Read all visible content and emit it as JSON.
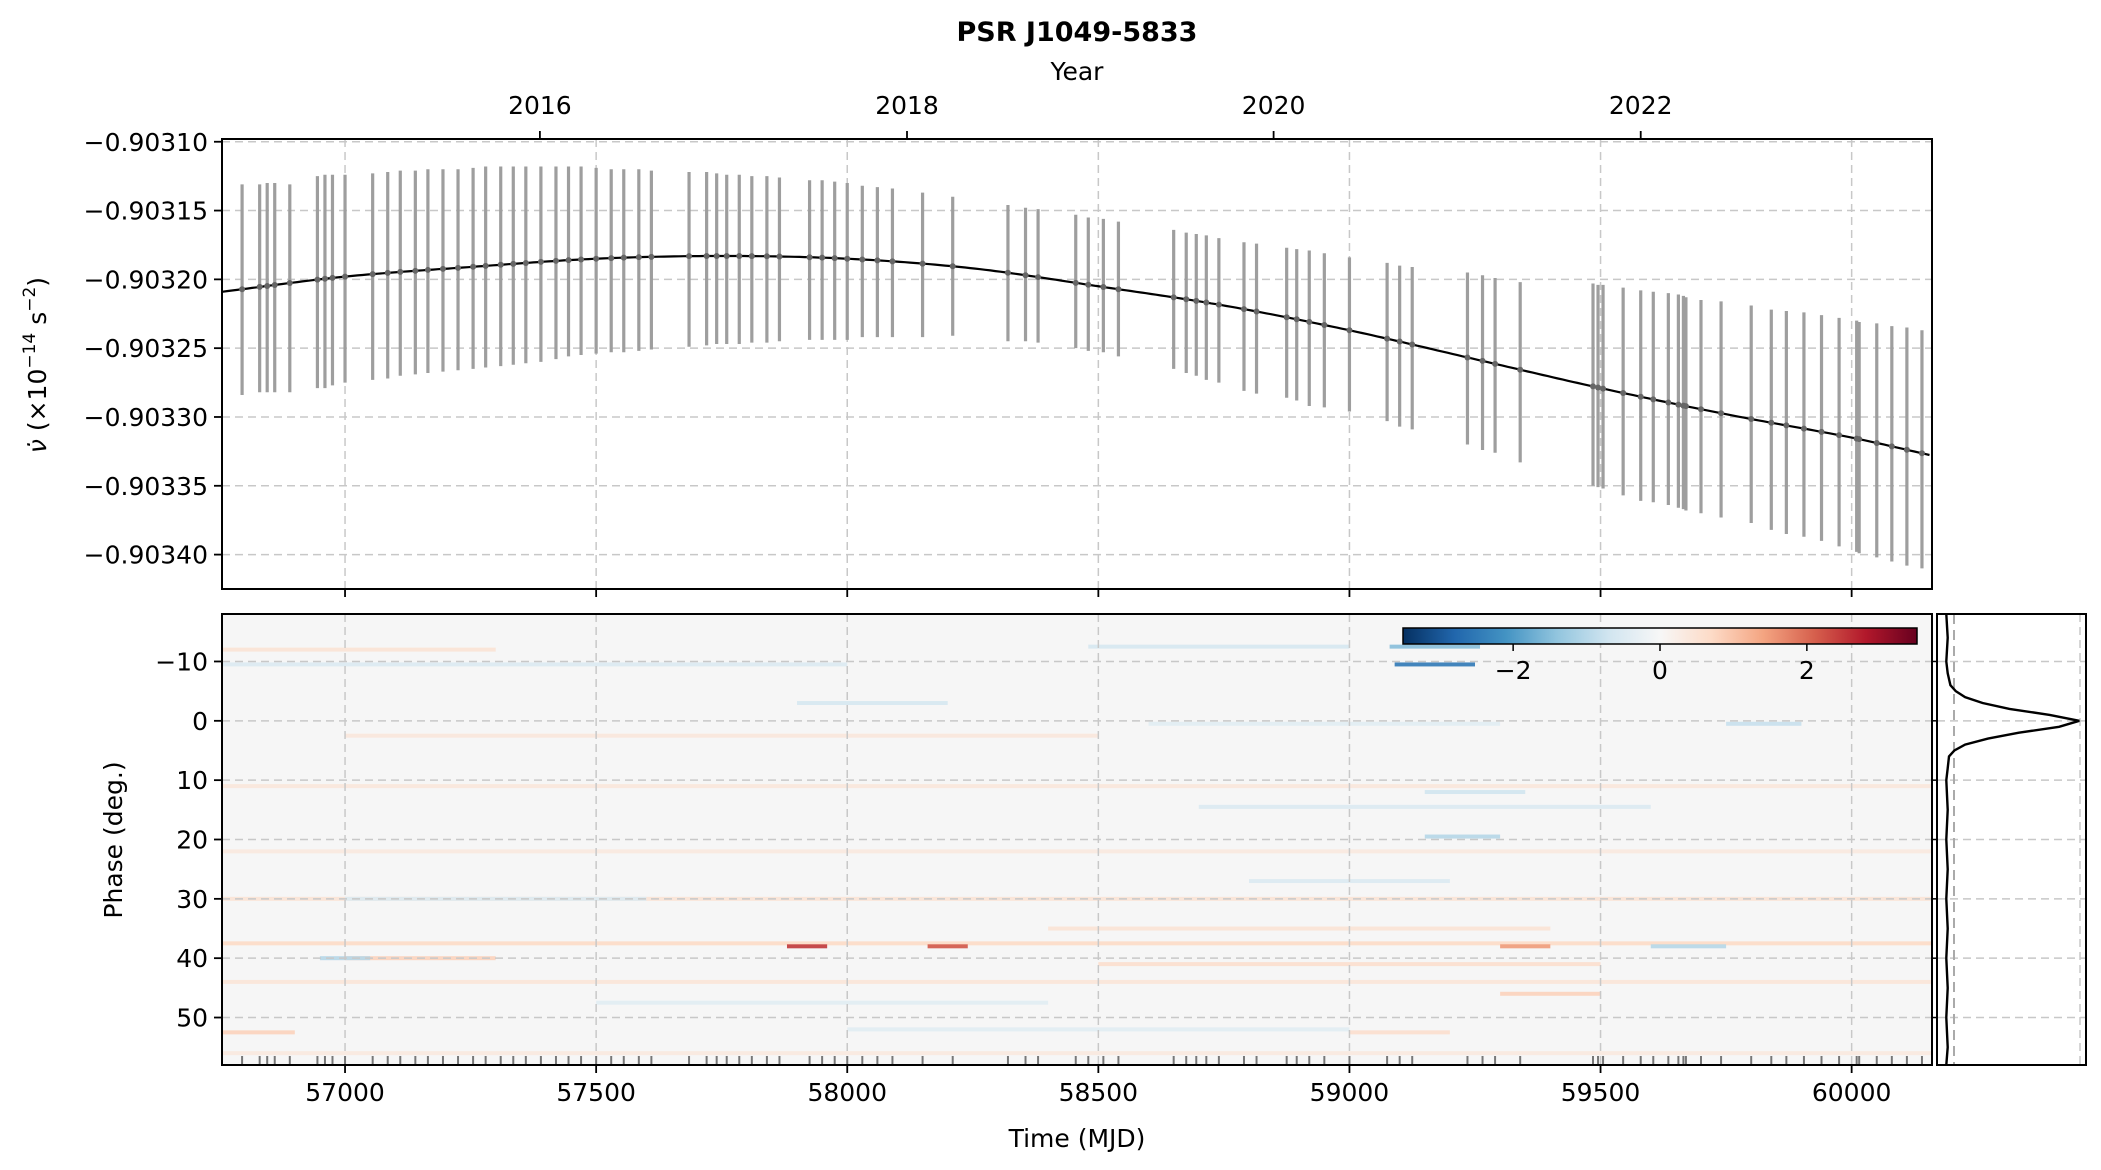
{
  "figure": {
    "title": "PSR J1049-5833"
  },
  "chart_data": [
    {
      "id": "spin-down",
      "type": "line",
      "title": "PSR J1049-5833",
      "xlabel": "",
      "ylabel": "ν̇ (×10⁻¹⁴ s⁻²)",
      "ylabel_parts": {
        "sym": "ν̇",
        "open": " (×10",
        "exp1": "−14",
        "mid": " s",
        "exp2": "−2",
        "close": ")"
      },
      "top_xlabel": "Year",
      "top_ticks": [
        {
          "value": 57388,
          "label": "2016"
        },
        {
          "value": 58119,
          "label": "2018"
        },
        {
          "value": 58849,
          "label": "2020"
        },
        {
          "value": 59580,
          "label": "2022"
        }
      ],
      "xlim": [
        56755,
        60160
      ],
      "ylim": [
        -0.903425,
        -0.903098
      ],
      "yticks": [
        {
          "value": -0.9031,
          "label": "−0.90310"
        },
        {
          "value": -0.90315,
          "label": "−0.90315"
        },
        {
          "value": -0.9032,
          "label": "−0.90320"
        },
        {
          "value": -0.90325,
          "label": "−0.90325"
        },
        {
          "value": -0.9033,
          "label": "−0.90330"
        },
        {
          "value": -0.90335,
          "label": "−0.90335"
        },
        {
          "value": -0.9034,
          "label": "−0.90340"
        }
      ],
      "grid": true,
      "model": {
        "x": [
          56755,
          57000,
          57250,
          57500,
          57750,
          58000,
          58250,
          58500,
          58750,
          59000,
          59250,
          59500,
          59750,
          60000,
          60160
        ],
        "y": [
          -0.903209,
          -0.903198,
          -0.903191,
          -0.903185,
          -0.903183,
          -0.903185,
          -0.903192,
          -0.903205,
          -0.903219,
          -0.903237,
          -0.903258,
          -0.903279,
          -0.903298,
          -0.903315,
          -0.903328
        ]
      },
      "error_bars": {
        "x": [
          56795,
          56830,
          56845,
          56860,
          56890,
          56945,
          56960,
          56975,
          57000,
          57055,
          57085,
          57110,
          57140,
          57165,
          57195,
          57225,
          57255,
          57280,
          57310,
          57335,
          57360,
          57390,
          57420,
          57445,
          57470,
          57500,
          57530,
          57555,
          57585,
          57610,
          57685,
          57720,
          57740,
          57760,
          57785,
          57810,
          57840,
          57865,
          57925,
          57950,
          57975,
          58000,
          58030,
          58060,
          58090,
          58150,
          58210,
          58320,
          58355,
          58380,
          58455,
          58480,
          58510,
          58540,
          58650,
          58675,
          58695,
          58715,
          58740,
          58790,
          58815,
          58875,
          58895,
          58920,
          58950,
          59000,
          59075,
          59100,
          59125,
          59235,
          59265,
          59290,
          59340,
          59485,
          59495,
          59505,
          59545,
          59580,
          59605,
          59635,
          59655,
          59665,
          59670,
          59700,
          59740,
          59800,
          59840,
          59870,
          59905,
          59940,
          59975,
          60010,
          60015,
          60050,
          60080,
          60110,
          60140
        ],
        "lo": [
          -0.903284,
          -0.903282,
          -0.903282,
          -0.903282,
          -0.903282,
          -0.903279,
          -0.903279,
          -0.903277,
          -0.903275,
          -0.903273,
          -0.903272,
          -0.90327,
          -0.903269,
          -0.903268,
          -0.903267,
          -0.903266,
          -0.903265,
          -0.903264,
          -0.903263,
          -0.903262,
          -0.903261,
          -0.90326,
          -0.903258,
          -0.903256,
          -0.903255,
          -0.903254,
          -0.903253,
          -0.903253,
          -0.903252,
          -0.903251,
          -0.903249,
          -0.903248,
          -0.903247,
          -0.903247,
          -0.903247,
          -0.903246,
          -0.903246,
          -0.903245,
          -0.903244,
          -0.903244,
          -0.903244,
          -0.903244,
          -0.903242,
          -0.903242,
          -0.903242,
          -0.903242,
          -0.903241,
          -0.903245,
          -0.903245,
          -0.903246,
          -0.90325,
          -0.903252,
          -0.903253,
          -0.903256,
          -0.903265,
          -0.903268,
          -0.90327,
          -0.903273,
          -0.903275,
          -0.903281,
          -0.903283,
          -0.903286,
          -0.903288,
          -0.903292,
          -0.903293,
          -0.903296,
          -0.903303,
          -0.903307,
          -0.903309,
          -0.90332,
          -0.903324,
          -0.903326,
          -0.903333,
          -0.90335,
          -0.903351,
          -0.903352,
          -0.903357,
          -0.903361,
          -0.903362,
          -0.903364,
          -0.903366,
          -0.903367,
          -0.903368,
          -0.90337,
          -0.903373,
          -0.903377,
          -0.903382,
          -0.903385,
          -0.903387,
          -0.90339,
          -0.903394,
          -0.903398,
          -0.903399,
          -0.903402,
          -0.903405,
          -0.903408,
          -0.90341
        ],
        "hi": [
          -0.903131,
          -0.903131,
          -0.90313,
          -0.90313,
          -0.903131,
          -0.903125,
          -0.903124,
          -0.903124,
          -0.903124,
          -0.903123,
          -0.903122,
          -0.903121,
          -0.903121,
          -0.90312,
          -0.90312,
          -0.90312,
          -0.903119,
          -0.903118,
          -0.903118,
          -0.903118,
          -0.903118,
          -0.903118,
          -0.903118,
          -0.903118,
          -0.903118,
          -0.903119,
          -0.90312,
          -0.90312,
          -0.90312,
          -0.903121,
          -0.903122,
          -0.903122,
          -0.903123,
          -0.903124,
          -0.903124,
          -0.903125,
          -0.903125,
          -0.903126,
          -0.903128,
          -0.903128,
          -0.903129,
          -0.90313,
          -0.903132,
          -0.903133,
          -0.903134,
          -0.903137,
          -0.90314,
          -0.903146,
          -0.903148,
          -0.903149,
          -0.903153,
          -0.903155,
          -0.903156,
          -0.903158,
          -0.903164,
          -0.903166,
          -0.903167,
          -0.903168,
          -0.90317,
          -0.903173,
          -0.903174,
          -0.903177,
          -0.903178,
          -0.903179,
          -0.903181,
          -0.903184,
          -0.903188,
          -0.90319,
          -0.903191,
          -0.903195,
          -0.903197,
          -0.903199,
          -0.903202,
          -0.903203,
          -0.903204,
          -0.903204,
          -0.903206,
          -0.903208,
          -0.903209,
          -0.90321,
          -0.903211,
          -0.903212,
          -0.903213,
          -0.903215,
          -0.903216,
          -0.903219,
          -0.903222,
          -0.903223,
          -0.903224,
          -0.903226,
          -0.903228,
          -0.90323,
          -0.903231,
          -0.903232,
          -0.903234,
          -0.903235,
          -0.903237
        ]
      }
    },
    {
      "id": "residual-heatmap",
      "type": "heatmap",
      "xlabel": "Time (MJD)",
      "ylabel": "Phase (deg.)",
      "xlim": [
        56755,
        60160
      ],
      "ylim": [
        58,
        -18
      ],
      "xticks": [
        {
          "value": 57000,
          "label": "57000"
        },
        {
          "value": 57500,
          "label": "57500"
        },
        {
          "value": 58000,
          "label": "58000"
        },
        {
          "value": 58500,
          "label": "58500"
        },
        {
          "value": 59000,
          "label": "59000"
        },
        {
          "value": 59500,
          "label": "59500"
        },
        {
          "value": 60000,
          "label": "60000"
        }
      ],
      "yticks": [
        {
          "value": -10,
          "label": "−10"
        },
        {
          "value": 0,
          "label": "0"
        },
        {
          "value": 10,
          "label": "10"
        },
        {
          "value": 20,
          "label": "20"
        },
        {
          "value": 30,
          "label": "30"
        },
        {
          "value": 40,
          "label": "40"
        },
        {
          "value": 50,
          "label": "50"
        }
      ],
      "grid": true,
      "colormap": "RdBu_r",
      "colorbar": {
        "range": [
          -3.5,
          3.5
        ],
        "ticks": [
          {
            "value": -2,
            "label": "−2"
          },
          {
            "value": 0,
            "label": "0"
          },
          {
            "value": 2,
            "label": "2"
          }
        ],
        "placement": "upper-right inset"
      },
      "streaks": [
        {
          "x0": 56755,
          "x1": 58000,
          "phase": -9.5,
          "value": -0.5
        },
        {
          "x0": 59090,
          "x1": 59250,
          "phase": -9.5,
          "value": -2.5
        },
        {
          "x0": 59080,
          "x1": 59260,
          "phase": -12.5,
          "value": -1.5
        },
        {
          "x0": 58480,
          "x1": 59000,
          "phase": -12.5,
          "value": -0.6
        },
        {
          "x0": 56755,
          "x1": 57300,
          "phase": -12.0,
          "value": 0.5
        },
        {
          "x0": 57900,
          "x1": 58200,
          "phase": -3.0,
          "value": -0.6
        },
        {
          "x0": 57000,
          "x1": 58500,
          "phase": 2.5,
          "value": 0.4
        },
        {
          "x0": 58600,
          "x1": 59300,
          "phase": 0.5,
          "value": -0.4
        },
        {
          "x0": 59750,
          "x1": 59900,
          "phase": 0.5,
          "value": -0.8
        },
        {
          "x0": 59150,
          "x1": 59350,
          "phase": 12.0,
          "value": -0.7
        },
        {
          "x0": 56755,
          "x1": 60160,
          "phase": 11.0,
          "value": 0.4
        },
        {
          "x0": 58700,
          "x1": 59600,
          "phase": 14.5,
          "value": -0.5
        },
        {
          "x0": 59150,
          "x1": 59300,
          "phase": 19.5,
          "value": -1.0
        },
        {
          "x0": 56755,
          "x1": 60160,
          "phase": 22.0,
          "value": 0.35
        },
        {
          "x0": 58800,
          "x1": 59200,
          "phase": 27.0,
          "value": -0.5
        },
        {
          "x0": 56755,
          "x1": 60160,
          "phase": 30.0,
          "value": 0.5
        },
        {
          "x0": 57000,
          "x1": 57600,
          "phase": 30.0,
          "value": -0.5
        },
        {
          "x0": 58400,
          "x1": 59400,
          "phase": 35.0,
          "value": 0.5
        },
        {
          "x0": 56755,
          "x1": 60160,
          "phase": 37.5,
          "value": 0.7
        },
        {
          "x0": 57880,
          "x1": 57960,
          "phase": 38.0,
          "value": 2.5
        },
        {
          "x0": 58160,
          "x1": 58240,
          "phase": 38.0,
          "value": 2.2
        },
        {
          "x0": 59300,
          "x1": 59400,
          "phase": 38.0,
          "value": 1.5
        },
        {
          "x0": 59600,
          "x1": 59750,
          "phase": 38.0,
          "value": -1.0
        },
        {
          "x0": 57000,
          "x1": 57300,
          "phase": 40.0,
          "value": 0.8
        },
        {
          "x0": 56950,
          "x1": 57050,
          "phase": 40.0,
          "value": -1.0
        },
        {
          "x0": 58500,
          "x1": 59500,
          "phase": 41.0,
          "value": 0.6
        },
        {
          "x0": 56755,
          "x1": 60160,
          "phase": 44.0,
          "value": 0.45
        },
        {
          "x0": 59300,
          "x1": 59500,
          "phase": 46.0,
          "value": 0.8
        },
        {
          "x0": 57500,
          "x1": 58400,
          "phase": 47.5,
          "value": -0.4
        },
        {
          "x0": 56755,
          "x1": 56900,
          "phase": 52.5,
          "value": 0.8
        },
        {
          "x0": 58000,
          "x1": 59000,
          "phase": 52.0,
          "value": -0.4
        },
        {
          "x0": 59000,
          "x1": 59200,
          "phase": 52.5,
          "value": 0.6
        },
        {
          "x0": 56755,
          "x1": 60160,
          "phase": 56.0,
          "value": 0.35
        }
      ],
      "obs_marks": [
        56795,
        56830,
        56845,
        56860,
        56890,
        56945,
        56960,
        56975,
        57000,
        57055,
        57085,
        57110,
        57140,
        57165,
        57195,
        57225,
        57255,
        57280,
        57310,
        57335,
        57360,
        57390,
        57420,
        57445,
        57470,
        57500,
        57530,
        57555,
        57585,
        57610,
        57685,
        57720,
        57740,
        57760,
        57785,
        57810,
        57840,
        57865,
        57925,
        57950,
        57975,
        58000,
        58030,
        58060,
        58090,
        58150,
        58210,
        58320,
        58355,
        58380,
        58455,
        58480,
        58510,
        58540,
        58650,
        58675,
        58695,
        58715,
        58740,
        58790,
        58815,
        58875,
        58895,
        58920,
        58950,
        59000,
        59075,
        59100,
        59125,
        59235,
        59265,
        59290,
        59340,
        59485,
        59495,
        59505,
        59545,
        59580,
        59605,
        59635,
        59655,
        59665,
        59670,
        59700,
        59740,
        59800,
        59840,
        59870,
        59905,
        59940,
        59975,
        60010,
        60015,
        60050,
        60080,
        60110,
        60140
      ]
    },
    {
      "id": "pulse-profile",
      "type": "line",
      "xlim": [
        0,
        1.05
      ],
      "ylim": [
        58,
        -18
      ],
      "phase": [
        -18,
        -14,
        -10,
        -8,
        -6,
        -5,
        -4,
        -3,
        -2,
        -1,
        0,
        1,
        2,
        3,
        4,
        5,
        6,
        8,
        10,
        15,
        20,
        25,
        30,
        35,
        40,
        45,
        50,
        55,
        58
      ],
      "intensity": [
        0.01,
        0.02,
        0.01,
        0.02,
        0.04,
        0.08,
        0.15,
        0.28,
        0.48,
        0.78,
        1.0,
        0.85,
        0.55,
        0.32,
        0.15,
        0.07,
        0.03,
        0.02,
        0.01,
        0.02,
        0.01,
        0.02,
        0.01,
        0.02,
        0.01,
        0.02,
        0.01,
        0.02,
        0.01
      ]
    }
  ]
}
